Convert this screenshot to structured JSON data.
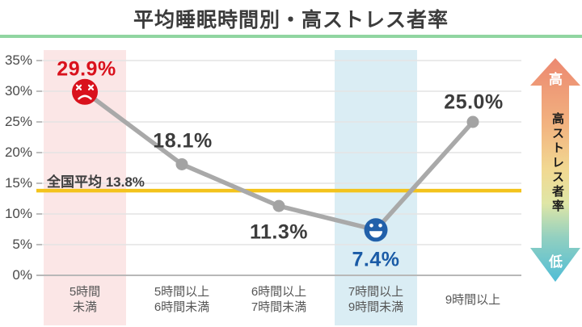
{
  "title": "平均睡眠時間別・高ストレス者率",
  "colors": {
    "title_text": "#3c3c3c",
    "title_underline": "#90d5a1",
    "gridline": "#e4e4e4",
    "axis_line": "#b8b8b8",
    "highlight_band_red": "#fbe6e6",
    "highlight_band_blue": "#daedf4",
    "reference_line_yellow": "#f3c31c",
    "series_gray": "#a9a9a9",
    "sad_face_red": "#d9111c",
    "happy_face_blue": "#2160aa"
  },
  "chart_data": {
    "type": "line",
    "title": "平均睡眠時間別・高ストレス者率",
    "categories": [
      [
        "5時間",
        "未満"
      ],
      [
        "5時間以上",
        "6時間未満"
      ],
      [
        "6時間以上",
        "7時間未満"
      ],
      [
        "7時間以上",
        "9時間未満"
      ],
      [
        "9時間以上"
      ]
    ],
    "values": [
      29.9,
      18.1,
      11.3,
      7.4,
      25.0
    ],
    "value_labels": [
      "29.9%",
      "18.1%",
      "11.3%",
      "7.4%",
      "25.0%"
    ],
    "value_label_colors": [
      "#d9111c",
      "#3c3c3c",
      "#3c3c3c",
      "#1a5ba6",
      "#3c3c3c"
    ],
    "ylim": [
      0,
      35
    ],
    "yticks": [
      35,
      30,
      25,
      20,
      15,
      10,
      5,
      0
    ],
    "ytick_labels": [
      "35%",
      "30%",
      "25%",
      "20%",
      "15%",
      "10%",
      "5%",
      "0%"
    ],
    "grid": true,
    "legend": "none",
    "reference_line": {
      "label": "全国平均 13.8%",
      "value": 13.8,
      "color": "#f3c31c"
    },
    "highlight_bands": [
      {
        "index": 0,
        "color": "#fbe6e6"
      },
      {
        "index": 3,
        "color": "#daedf4"
      }
    ],
    "point_icons": [
      {
        "index": 0,
        "icon": "sad-face",
        "color": "#d9111c"
      },
      {
        "index": 3,
        "icon": "happy-face",
        "color": "#2160aa"
      }
    ],
    "line_color": "#a9a9a9",
    "point_color": "#a3a3a3"
  },
  "scale_arrow": {
    "top_label": "高",
    "bottom_label": "低",
    "center_label": "高ストレス者率",
    "gradient": [
      "#ec8870",
      "#f2b380",
      "#f1d992",
      "#dfe6a6",
      "#93d0c0",
      "#4fbdd6"
    ]
  }
}
